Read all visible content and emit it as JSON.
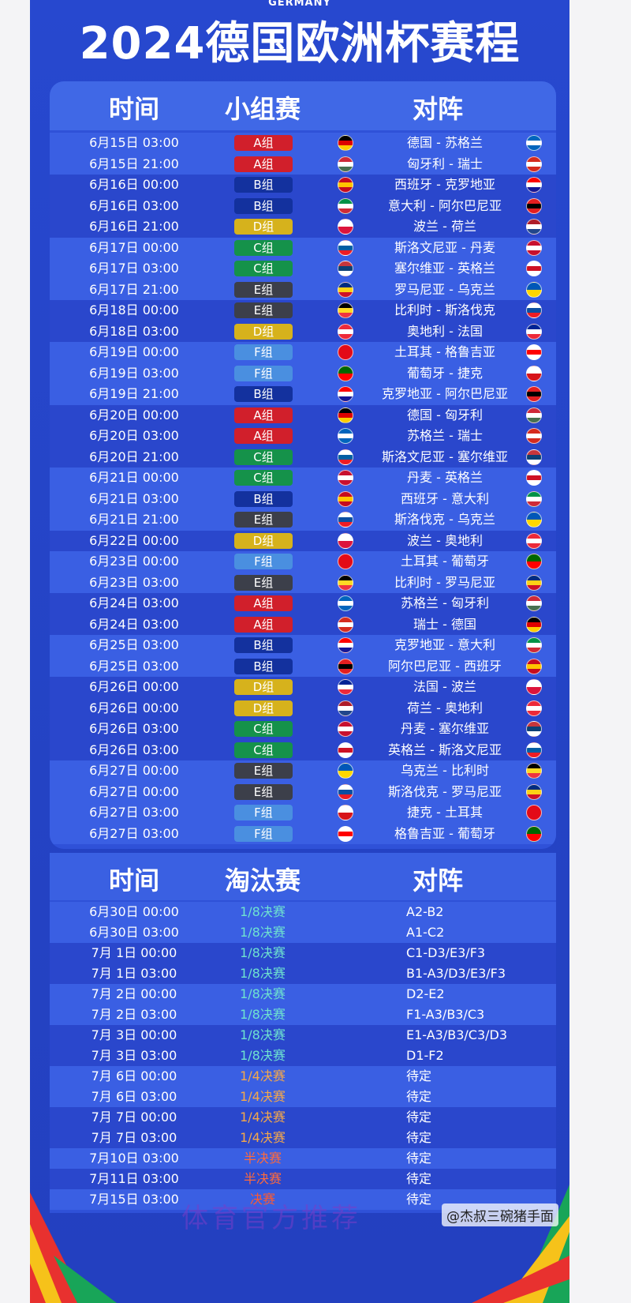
{
  "header": {
    "subtitle": "GERMANY",
    "title": "2024德国欧洲杯赛程"
  },
  "group_stage": {
    "columns": [
      "时间",
      "小组赛",
      "对阵"
    ],
    "group_colors": {
      "A组": "#d11f2b",
      "B组": "#13319e",
      "C组": "#15924a",
      "D组": "#d6b21c",
      "E组": "#3c3f4a",
      "F组": "#4a8fe0"
    },
    "rows": [
      {
        "time": "6月15日 03:00",
        "group": "A组",
        "match": "德国 - 苏格兰",
        "flags": [
          [
            "#000000",
            "#dd0000",
            "#ffcc00"
          ],
          [
            "#0065bd",
            "#ffffff",
            "#0065bd"
          ]
        ]
      },
      {
        "time": "6月15日 21:00",
        "group": "A组",
        "match": "匈牙利 - 瑞士",
        "flags": [
          [
            "#ce2939",
            "#ffffff",
            "#477050"
          ],
          [
            "#d52b1e",
            "#ffffff",
            "#d52b1e"
          ]
        ]
      },
      {
        "time": "6月16日 00:00",
        "group": "B组",
        "match": "西班牙 - 克罗地亚",
        "flags": [
          [
            "#c60b1e",
            "#ffc400",
            "#c60b1e"
          ],
          [
            "#ff0000",
            "#ffffff",
            "#171796"
          ]
        ]
      },
      {
        "time": "6月16日 03:00",
        "group": "B组",
        "match": "意大利 - 阿尔巴尼亚",
        "flags": [
          [
            "#009246",
            "#ffffff",
            "#ce2b37"
          ],
          [
            "#e41e20",
            "#000000",
            "#e41e20"
          ]
        ]
      },
      {
        "time": "6月16日 21:00",
        "group": "D组",
        "match": "波兰 - 荷兰",
        "flags": [
          [
            "#ffffff",
            "#dc143c"
          ],
          [
            "#ae1c28",
            "#ffffff",
            "#21468b"
          ]
        ]
      },
      {
        "time": "6月17日 00:00",
        "group": "C组",
        "match": "斯洛文尼亚 - 丹麦",
        "flags": [
          [
            "#ffffff",
            "#005da4",
            "#ed1c24"
          ],
          [
            "#c8102e",
            "#ffffff",
            "#c8102e"
          ]
        ]
      },
      {
        "time": "6月17日 03:00",
        "group": "C组",
        "match": "塞尔维亚 - 英格兰",
        "flags": [
          [
            "#c6363c",
            "#0c4076",
            "#ffffff"
          ],
          [
            "#ffffff",
            "#ce1124",
            "#ffffff"
          ]
        ]
      },
      {
        "time": "6月17日 21:00",
        "group": "E组",
        "match": "罗马尼亚 - 乌克兰",
        "flags": [
          [
            "#002b7f",
            "#fcd116",
            "#ce1126"
          ],
          [
            "#0057b7",
            "#ffd700"
          ]
        ]
      },
      {
        "time": "6月18日 00:00",
        "group": "E组",
        "match": "比利时 - 斯洛伐克",
        "flags": [
          [
            "#000000",
            "#fdda24",
            "#ef3340"
          ],
          [
            "#ffffff",
            "#0b4ea2",
            "#ee1c25"
          ]
        ]
      },
      {
        "time": "6月18日 03:00",
        "group": "D组",
        "match": "奥地利 - 法国",
        "flags": [
          [
            "#ed2939",
            "#ffffff",
            "#ed2939"
          ],
          [
            "#002395",
            "#ffffff",
            "#ed2939"
          ]
        ]
      },
      {
        "time": "6月19日 00:00",
        "group": "F组",
        "match": "土耳其 - 格鲁吉亚",
        "flags": [
          [
            "#e30a17"
          ],
          [
            "#ffffff",
            "#ff0000",
            "#ffffff"
          ]
        ]
      },
      {
        "time": "6月19日 03:00",
        "group": "F组",
        "match": "葡萄牙 - 捷克",
        "flags": [
          [
            "#006600",
            "#ff0000"
          ],
          [
            "#ffffff",
            "#d7141a"
          ]
        ]
      },
      {
        "time": "6月19日 21:00",
        "group": "B组",
        "match": "克罗地亚 - 阿尔巴尼亚",
        "flags": [
          [
            "#ff0000",
            "#ffffff",
            "#171796"
          ],
          [
            "#e41e20",
            "#000000",
            "#e41e20"
          ]
        ]
      },
      {
        "time": "6月20日 00:00",
        "group": "A组",
        "match": "德国 - 匈牙利",
        "flags": [
          [
            "#000000",
            "#dd0000",
            "#ffcc00"
          ],
          [
            "#ce2939",
            "#ffffff",
            "#477050"
          ]
        ]
      },
      {
        "time": "6月20日 03:00",
        "group": "A组",
        "match": "苏格兰 - 瑞士",
        "flags": [
          [
            "#0065bd",
            "#ffffff",
            "#0065bd"
          ],
          [
            "#d52b1e",
            "#ffffff",
            "#d52b1e"
          ]
        ]
      },
      {
        "time": "6月20日 21:00",
        "group": "C组",
        "match": "斯洛文尼亚 - 塞尔维亚",
        "flags": [
          [
            "#ffffff",
            "#005da4",
            "#ed1c24"
          ],
          [
            "#c6363c",
            "#0c4076",
            "#ffffff"
          ]
        ]
      },
      {
        "time": "6月21日 00:00",
        "group": "C组",
        "match": "丹麦 - 英格兰",
        "flags": [
          [
            "#c8102e",
            "#ffffff",
            "#c8102e"
          ],
          [
            "#ffffff",
            "#ce1124",
            "#ffffff"
          ]
        ]
      },
      {
        "time": "6月21日 03:00",
        "group": "B组",
        "match": "西班牙 - 意大利",
        "flags": [
          [
            "#c60b1e",
            "#ffc400",
            "#c60b1e"
          ],
          [
            "#009246",
            "#ffffff",
            "#ce2b37"
          ]
        ]
      },
      {
        "time": "6月21日 21:00",
        "group": "E组",
        "match": "斯洛伐克 - 乌克兰",
        "flags": [
          [
            "#ffffff",
            "#0b4ea2",
            "#ee1c25"
          ],
          [
            "#0057b7",
            "#ffd700"
          ]
        ]
      },
      {
        "time": "6月22日 00:00",
        "group": "D组",
        "match": "波兰 - 奥地利",
        "flags": [
          [
            "#ffffff",
            "#dc143c"
          ],
          [
            "#ed2939",
            "#ffffff",
            "#ed2939"
          ]
        ]
      },
      {
        "time": "6月23日 00:00",
        "group": "F组",
        "match": "土耳其 - 葡萄牙",
        "flags": [
          [
            "#e30a17"
          ],
          [
            "#006600",
            "#ff0000"
          ]
        ]
      },
      {
        "time": "6月23日 03:00",
        "group": "E组",
        "match": "比利时 - 罗马尼亚",
        "flags": [
          [
            "#000000",
            "#fdda24",
            "#ef3340"
          ],
          [
            "#002b7f",
            "#fcd116",
            "#ce1126"
          ]
        ]
      },
      {
        "time": "6月24日 03:00",
        "group": "A组",
        "match": "苏格兰 - 匈牙利",
        "flags": [
          [
            "#0065bd",
            "#ffffff",
            "#0065bd"
          ],
          [
            "#ce2939",
            "#ffffff",
            "#477050"
          ]
        ]
      },
      {
        "time": "6月24日 03:00",
        "group": "A组",
        "match": "瑞士 - 德国",
        "flags": [
          [
            "#d52b1e",
            "#ffffff",
            "#d52b1e"
          ],
          [
            "#000000",
            "#dd0000",
            "#ffcc00"
          ]
        ]
      },
      {
        "time": "6月25日 03:00",
        "group": "B组",
        "match": "克罗地亚 - 意大利",
        "flags": [
          [
            "#ff0000",
            "#ffffff",
            "#171796"
          ],
          [
            "#009246",
            "#ffffff",
            "#ce2b37"
          ]
        ]
      },
      {
        "time": "6月25日 03:00",
        "group": "B组",
        "match": "阿尔巴尼亚 - 西班牙",
        "flags": [
          [
            "#e41e20",
            "#000000",
            "#e41e20"
          ],
          [
            "#c60b1e",
            "#ffc400",
            "#c60b1e"
          ]
        ]
      },
      {
        "time": "6月26日 00:00",
        "group": "D组",
        "match": "法国 - 波兰",
        "flags": [
          [
            "#002395",
            "#ffffff",
            "#ed2939"
          ],
          [
            "#ffffff",
            "#dc143c"
          ]
        ]
      },
      {
        "time": "6月26日 00:00",
        "group": "D组",
        "match": "荷兰 - 奥地利",
        "flags": [
          [
            "#ae1c28",
            "#ffffff",
            "#21468b"
          ],
          [
            "#ed2939",
            "#ffffff",
            "#ed2939"
          ]
        ]
      },
      {
        "time": "6月26日 03:00",
        "group": "C组",
        "match": "丹麦 - 塞尔维亚",
        "flags": [
          [
            "#c8102e",
            "#ffffff",
            "#c8102e"
          ],
          [
            "#c6363c",
            "#0c4076",
            "#ffffff"
          ]
        ]
      },
      {
        "time": "6月26日 03:00",
        "group": "C组",
        "match": "英格兰 - 斯洛文尼亚",
        "flags": [
          [
            "#ffffff",
            "#ce1124",
            "#ffffff"
          ],
          [
            "#ffffff",
            "#005da4",
            "#ed1c24"
          ]
        ]
      },
      {
        "time": "6月27日 00:00",
        "group": "E组",
        "match": "乌克兰 - 比利时",
        "flags": [
          [
            "#0057b7",
            "#ffd700"
          ],
          [
            "#000000",
            "#fdda24",
            "#ef3340"
          ]
        ]
      },
      {
        "time": "6月27日 00:00",
        "group": "E组",
        "match": "斯洛伐克 - 罗马尼亚",
        "flags": [
          [
            "#ffffff",
            "#0b4ea2",
            "#ee1c25"
          ],
          [
            "#002b7f",
            "#fcd116",
            "#ce1126"
          ]
        ]
      },
      {
        "time": "6月27日 03:00",
        "group": "F组",
        "match": "捷克 - 土耳其",
        "flags": [
          [
            "#ffffff",
            "#d7141a"
          ],
          [
            "#e30a17"
          ]
        ]
      },
      {
        "time": "6月27日 03:00",
        "group": "F组",
        "match": "格鲁吉亚 - 葡萄牙",
        "flags": [
          [
            "#ffffff",
            "#ff0000",
            "#ffffff"
          ],
          [
            "#006600",
            "#ff0000"
          ]
        ]
      }
    ]
  },
  "knockout": {
    "columns": [
      "时间",
      "淘汰赛",
      "对阵"
    ],
    "stage_colors": {
      "1/8决赛": "#6fe3d0",
      "1/4决赛": "#f5a84a",
      "半决赛": "#ff6a3c",
      "决赛": "#ff5a30"
    },
    "rows": [
      {
        "time": "6月30日 00:00",
        "stage": "1/8决赛",
        "match": "A2-B2"
      },
      {
        "time": "6月30日 03:00",
        "stage": "1/8决赛",
        "match": "A1-C2"
      },
      {
        "time": "7月 1日 00:00",
        "stage": "1/8决赛",
        "match": "C1-D3/E3/F3"
      },
      {
        "time": "7月 1日 03:00",
        "stage": "1/8决赛",
        "match": "B1-A3/D3/E3/F3"
      },
      {
        "time": "7月 2日 00:00",
        "stage": "1/8决赛",
        "match": "D2-E2"
      },
      {
        "time": "7月 2日 03:00",
        "stage": "1/8决赛",
        "match": "F1-A3/B3/C3"
      },
      {
        "time": "7月 3日 00:00",
        "stage": "1/8决赛",
        "match": "E1-A3/B3/C3/D3"
      },
      {
        "time": "7月 3日 03:00",
        "stage": "1/8决赛",
        "match": "D1-F2"
      },
      {
        "time": "7月 6日 00:00",
        "stage": "1/4决赛",
        "match": "待定"
      },
      {
        "time": "7月 6日 03:00",
        "stage": "1/4决赛",
        "match": "待定"
      },
      {
        "time": "7月 7日 00:00",
        "stage": "1/4决赛",
        "match": "待定"
      },
      {
        "time": "7月 7日 03:00",
        "stage": "1/4决赛",
        "match": "待定"
      },
      {
        "time": "7月10日 03:00",
        "stage": "半决赛",
        "match": "待定"
      },
      {
        "time": "7月11日 03:00",
        "stage": "半决赛",
        "match": "待定"
      },
      {
        "time": "7月15日 03:00",
        "stage": "决赛",
        "match": "待定"
      }
    ]
  },
  "watermark": {
    "overlay": "体育官方推荐",
    "author": "@杰叔三碗猪手面"
  }
}
